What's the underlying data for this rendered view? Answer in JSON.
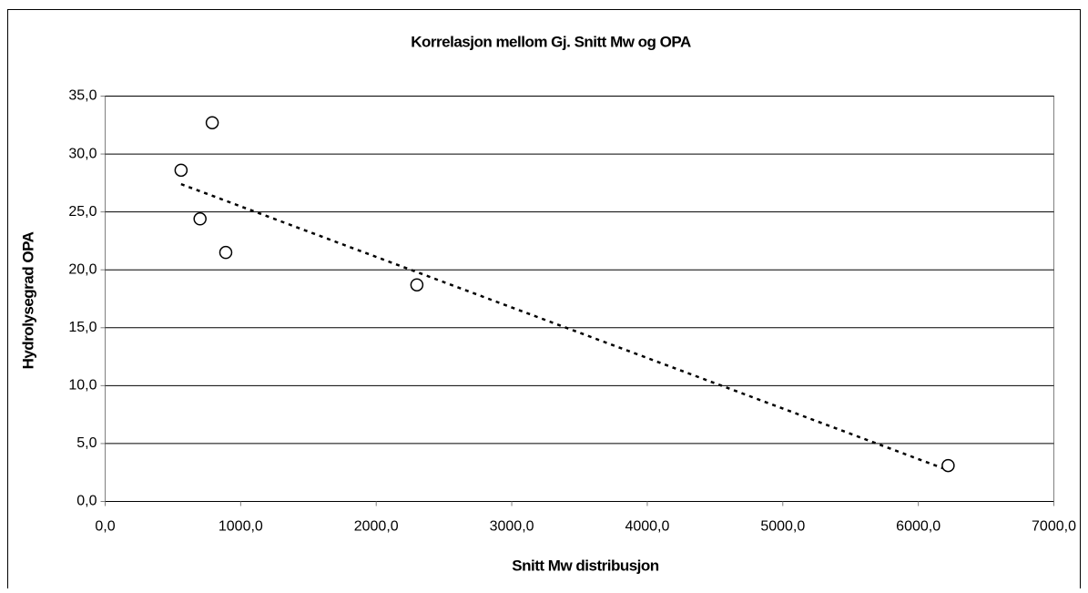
{
  "chart_data": {
    "type": "scatter",
    "title": "Korrelasjon mellom Gj. Snitt Mw og OPA",
    "x_label": "Snitt Mw distribusjon",
    "y_label": "Hydrolysegrad OPA",
    "x": [
      560,
      790,
      700,
      890,
      2300,
      6220
    ],
    "values": [
      28.6,
      32.7,
      24.4,
      21.5,
      18.7,
      3.1
    ],
    "color": "#000000",
    "trendline": {
      "x": [
        560,
        6220
      ],
      "values": [
        27.4,
        2.7
      ],
      "color": "#000000"
    },
    "xlim": [
      0,
      7000
    ],
    "xticks": [
      {
        "value": 0,
        "label": "0,0"
      },
      {
        "value": 1000,
        "label": "1000,0"
      },
      {
        "value": 2000,
        "label": "2000,0"
      },
      {
        "value": 3000,
        "label": "3000,0"
      },
      {
        "value": 4000,
        "label": "4000,0"
      },
      {
        "value": 5000,
        "label": "5000,0"
      },
      {
        "value": 6000,
        "label": "6000,0"
      },
      {
        "value": 7000,
        "label": "7000,0"
      }
    ],
    "ylim": [
      0,
      35
    ],
    "yticks": [
      {
        "value": 0,
        "label": "0,0"
      },
      {
        "value": 5,
        "label": "5,0"
      },
      {
        "value": 10,
        "label": "10,0"
      },
      {
        "value": 15,
        "label": "15,0"
      },
      {
        "value": 20,
        "label": "20,0"
      },
      {
        "value": 25,
        "label": "25,0"
      },
      {
        "value": 30,
        "label": "30,0"
      },
      {
        "value": 35,
        "label": "35,0"
      }
    ],
    "grid": true
  }
}
